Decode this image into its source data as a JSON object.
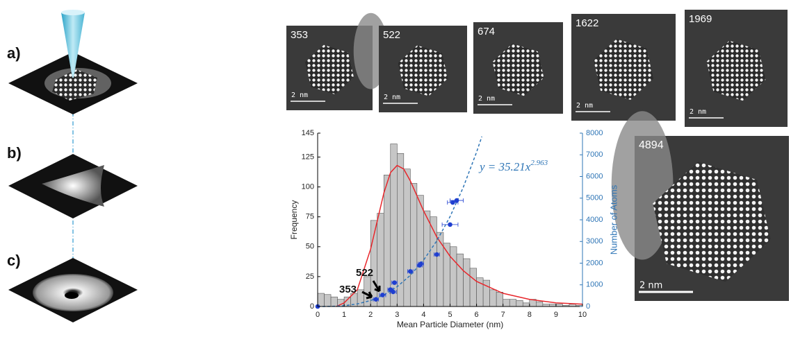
{
  "panels": [
    "a)",
    "b)",
    "c)"
  ],
  "images": [
    {
      "label": "353",
      "scale_bar": "2 nm"
    },
    {
      "label": "522",
      "scale_bar": "2 nm"
    },
    {
      "label": "674",
      "scale_bar": "2 nm"
    },
    {
      "label": "1622",
      "scale_bar": "2 nm"
    },
    {
      "label": "1969",
      "scale_bar": "2 nm"
    },
    {
      "label": "4894",
      "scale_bar": "2 nm"
    }
  ],
  "chart_data": {
    "type": "histogram",
    "x_label": "Mean Particle Diameter (nm)",
    "y_label": "Frequency",
    "y2_label": "Number of Atoms",
    "bins": [
      0,
      0.25,
      0.5,
      0.75,
      1,
      1.25,
      1.5,
      1.75,
      2,
      2.25,
      2.5,
      2.75,
      3,
      3.25,
      3.5,
      3.75,
      4,
      4.25,
      4.5,
      4.75,
      5,
      5.25,
      5.5,
      5.75,
      6,
      6.25,
      6.5,
      6.75,
      7,
      7.25,
      7.5,
      7.75,
      8,
      8.25,
      8.5,
      8.75,
      9,
      9.25,
      9.5,
      9.75,
      10
    ],
    "values": [
      11,
      10,
      8,
      6,
      8,
      11,
      14,
      25,
      72,
      78,
      110,
      136,
      128,
      115,
      103,
      93,
      80,
      75,
      62,
      53,
      50,
      44,
      40,
      32,
      24,
      22,
      14,
      12,
      6,
      6,
      5,
      3,
      6,
      4,
      2,
      2,
      2,
      1,
      2,
      1
    ],
    "color": "#c6c6c6",
    "edge_color": "#555555",
    "xlim": [
      0,
      10
    ],
    "xticks": [
      0,
      1,
      2,
      3,
      4,
      5,
      6,
      7,
      8,
      9,
      10
    ],
    "ylim": [
      0,
      145
    ],
    "yticks": [
      0,
      25,
      50,
      75,
      100,
      125,
      145
    ],
    "y2lim": [
      0,
      8000
    ],
    "y2ticks": [
      0,
      1000,
      2000,
      3000,
      4000,
      5000,
      6000,
      7000,
      8000
    ],
    "y2_color": "#2e75b6",
    "grid": false,
    "overlays": [
      {
        "type": "line",
        "color": "#e8262b",
        "line_style": "solid",
        "x": [
          0.7,
          1,
          1.5,
          2,
          2.5,
          2.75,
          3,
          3.25,
          3.5,
          4,
          4.5,
          5,
          5.5,
          6,
          7,
          8,
          9,
          10
        ],
        "values": [
          0,
          3,
          14,
          48,
          95,
          112,
          118,
          115,
          105,
          80,
          58,
          42,
          30,
          21,
          11,
          6,
          3,
          2
        ]
      },
      {
        "type": "line",
        "color": "#2e75b6",
        "line_style": "dashed",
        "axis": "y2",
        "x": [
          0,
          0.5,
          1,
          1.5,
          2,
          2.5,
          3,
          3.5,
          4,
          4.5,
          5,
          5.5,
          6,
          6.2
        ],
        "values": [
          0,
          4.5,
          35,
          117,
          275,
          532,
          913,
          1441,
          2140,
          3035,
          4148,
          5500,
          7119,
          7842
        ]
      },
      {
        "type": "scatter",
        "color": "#1f3fd0",
        "axis": "y2",
        "x": [
          0,
          2.2,
          2.45,
          2.75,
          2.85,
          2.9,
          3.5,
          3.85,
          3.9,
          4.5,
          5.0,
          5.1,
          5.25
        ],
        "values": [
          0,
          330,
          530,
          780,
          674,
          1100,
          1620,
          1900,
          1969,
          2400,
          3780,
          4800,
          4894
        ],
        "x_err": [
          0,
          0.1,
          0.12,
          0.1,
          0.12,
          0.1,
          0.1,
          0.1,
          0.1,
          0.1,
          0.3,
          0.2,
          0.25
        ]
      }
    ],
    "annotations": [
      {
        "text": "y = 35.21x",
        "superscript": "2.963"
      },
      {
        "text": "353"
      },
      {
        "text": "522"
      }
    ]
  }
}
